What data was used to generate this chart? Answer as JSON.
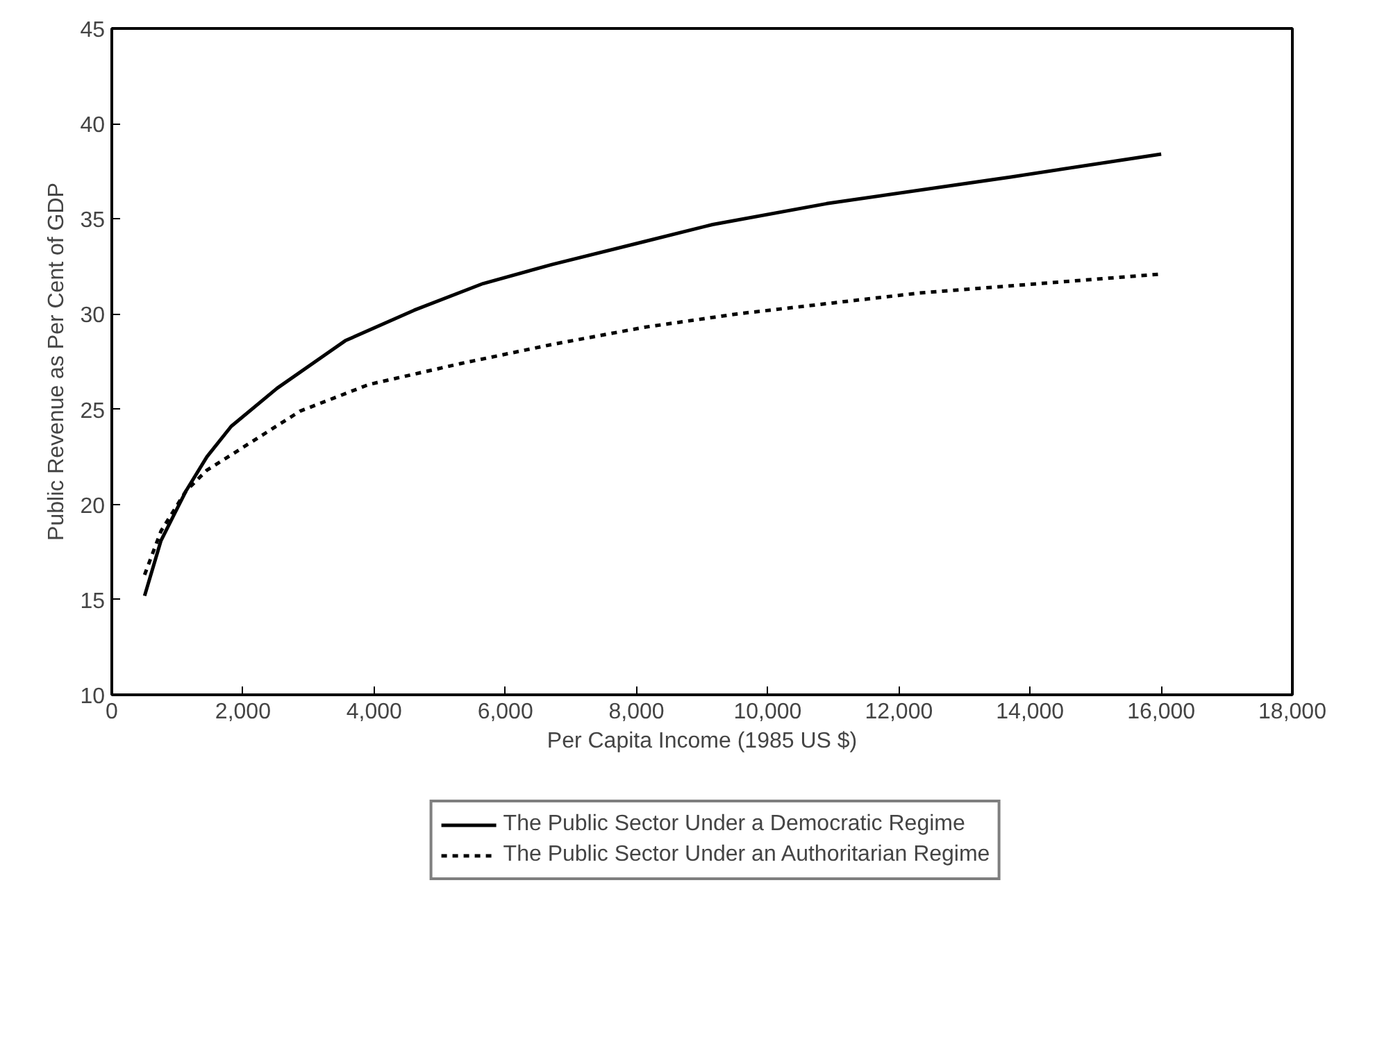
{
  "chart_data": {
    "type": "line",
    "xlabel": "Per Capita Income (1985 US $)",
    "ylabel": "Public Revenue as Per Cent of GDP",
    "xlim": [
      0,
      18000
    ],
    "ylim": [
      10,
      45
    ],
    "xticks": [
      0,
      {
        "value": 2000,
        "label": "2,000"
      },
      {
        "value": 4000,
        "label": "4,000"
      },
      {
        "value": 6000,
        "label": "6,000"
      },
      {
        "value": 8000,
        "label": "8,000"
      },
      {
        "value": 10000,
        "label": "10,000"
      },
      {
        "value": 12000,
        "label": "12,000"
      },
      {
        "value": 14000,
        "label": "14,000"
      },
      {
        "value": 16000,
        "label": "16,000"
      },
      {
        "value": 18000,
        "label": "18,000"
      }
    ],
    "yticks": [
      10,
      15,
      20,
      25,
      30,
      35,
      40,
      45
    ],
    "grid": false,
    "legend": "bottom",
    "marker": "none",
    "series": [
      {
        "name": "The Public Sector Under a Democratic Regime",
        "color": "#000000",
        "line_style": "solid",
        "x": [
          500,
          750,
          1130,
          1450,
          1820,
          2520,
          3560,
          4610,
          5660,
          6710,
          8110,
          9160,
          10900,
          13710,
          16000
        ],
        "values": [
          15.2,
          18.1,
          20.7,
          22.5,
          24.1,
          26.1,
          28.6,
          30.2,
          31.6,
          32.6,
          33.8,
          34.7,
          35.8,
          37.2,
          38.4
        ]
      },
      {
        "name": "The Public Sector Under an Authoritarian Regime",
        "color": "#000000",
        "line_style": "dashed",
        "x": [
          500,
          750,
          1130,
          1450,
          1820,
          2870,
          3920,
          5320,
          6710,
          8110,
          9520,
          12300,
          16000
        ],
        "values": [
          16.3,
          18.6,
          20.7,
          21.8,
          22.6,
          24.9,
          26.3,
          27.4,
          28.4,
          29.3,
          30.0,
          31.1,
          32.1
        ]
      }
    ]
  }
}
